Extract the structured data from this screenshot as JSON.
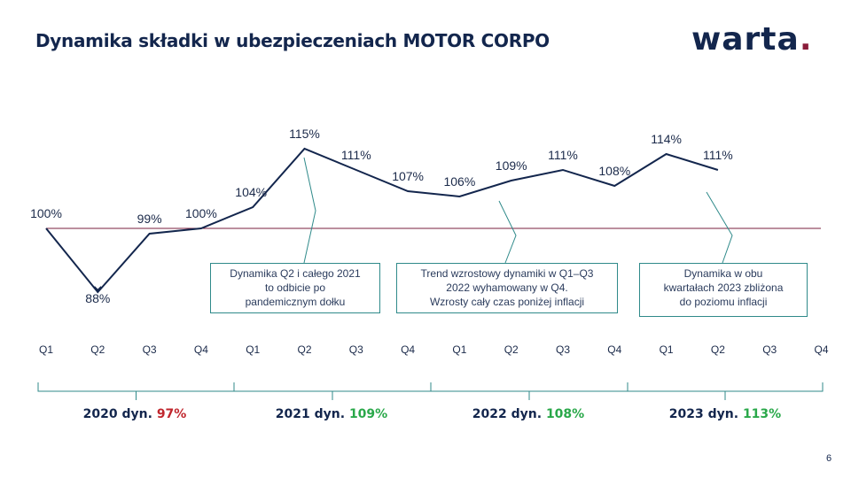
{
  "header": {
    "title": "Dynamika składki w ubezpieczeniach MOTOR CORPO",
    "logo_text": "warta",
    "logo_dot": ".",
    "logo_color": "#13264d",
    "logo_accent_color": "#8a1c3a"
  },
  "chart_data": {
    "type": "line",
    "title": "",
    "categories": [
      "Q1",
      "Q2",
      "Q3",
      "Q4",
      "Q1",
      "Q2",
      "Q3",
      "Q4",
      "Q1",
      "Q2",
      "Q3",
      "Q4",
      "Q1",
      "Q2",
      "Q3",
      "Q4"
    ],
    "series": [
      {
        "values": [
          100,
          88,
          99,
          100,
          104,
          115,
          111,
          107,
          106,
          109,
          111,
          108,
          114,
          111,
          null,
          null
        ],
        "labels": [
          "100%",
          "88%",
          "99%",
          "100%",
          "104%",
          "115%",
          "111%",
          "107%",
          "106%",
          "109%",
          "111%",
          "108%",
          "114%",
          "111%",
          null,
          null
        ],
        "color": "#13264d"
      }
    ],
    "reference_line": {
      "value": 100,
      "color": "#7a1f3d"
    },
    "ylim": [
      84,
      118
    ],
    "grid": false,
    "legend": "none",
    "annotations": [
      {
        "text": [
          "Dynamika Q2 i całego 2021",
          "to odbicie po",
          "pandemicznym dołku"
        ]
      },
      {
        "text": [
          "Trend wzrostowy dynamiki w Q1–Q3",
          "2022 wyhamowany  w Q4.",
          "Wzrosty cały czas poniżej inflacji"
        ]
      },
      {
        "text": [
          "Dynamika  w obu",
          "kwartałach  2023 zbliżona",
          "do poziomu inflacji"
        ]
      }
    ],
    "years": [
      {
        "label": "2020 dyn. ",
        "value": "97%",
        "color": "#c0262d"
      },
      {
        "label": "2021 dyn. ",
        "value": "109%",
        "color": "#2aa84a"
      },
      {
        "label": "2022 dyn. ",
        "value": "108%",
        "color": "#2aa84a"
      },
      {
        "label": "2023 dyn. ",
        "value": "113%",
        "color": "#2aa84a"
      }
    ]
  },
  "footer": {
    "page_number": "6"
  }
}
